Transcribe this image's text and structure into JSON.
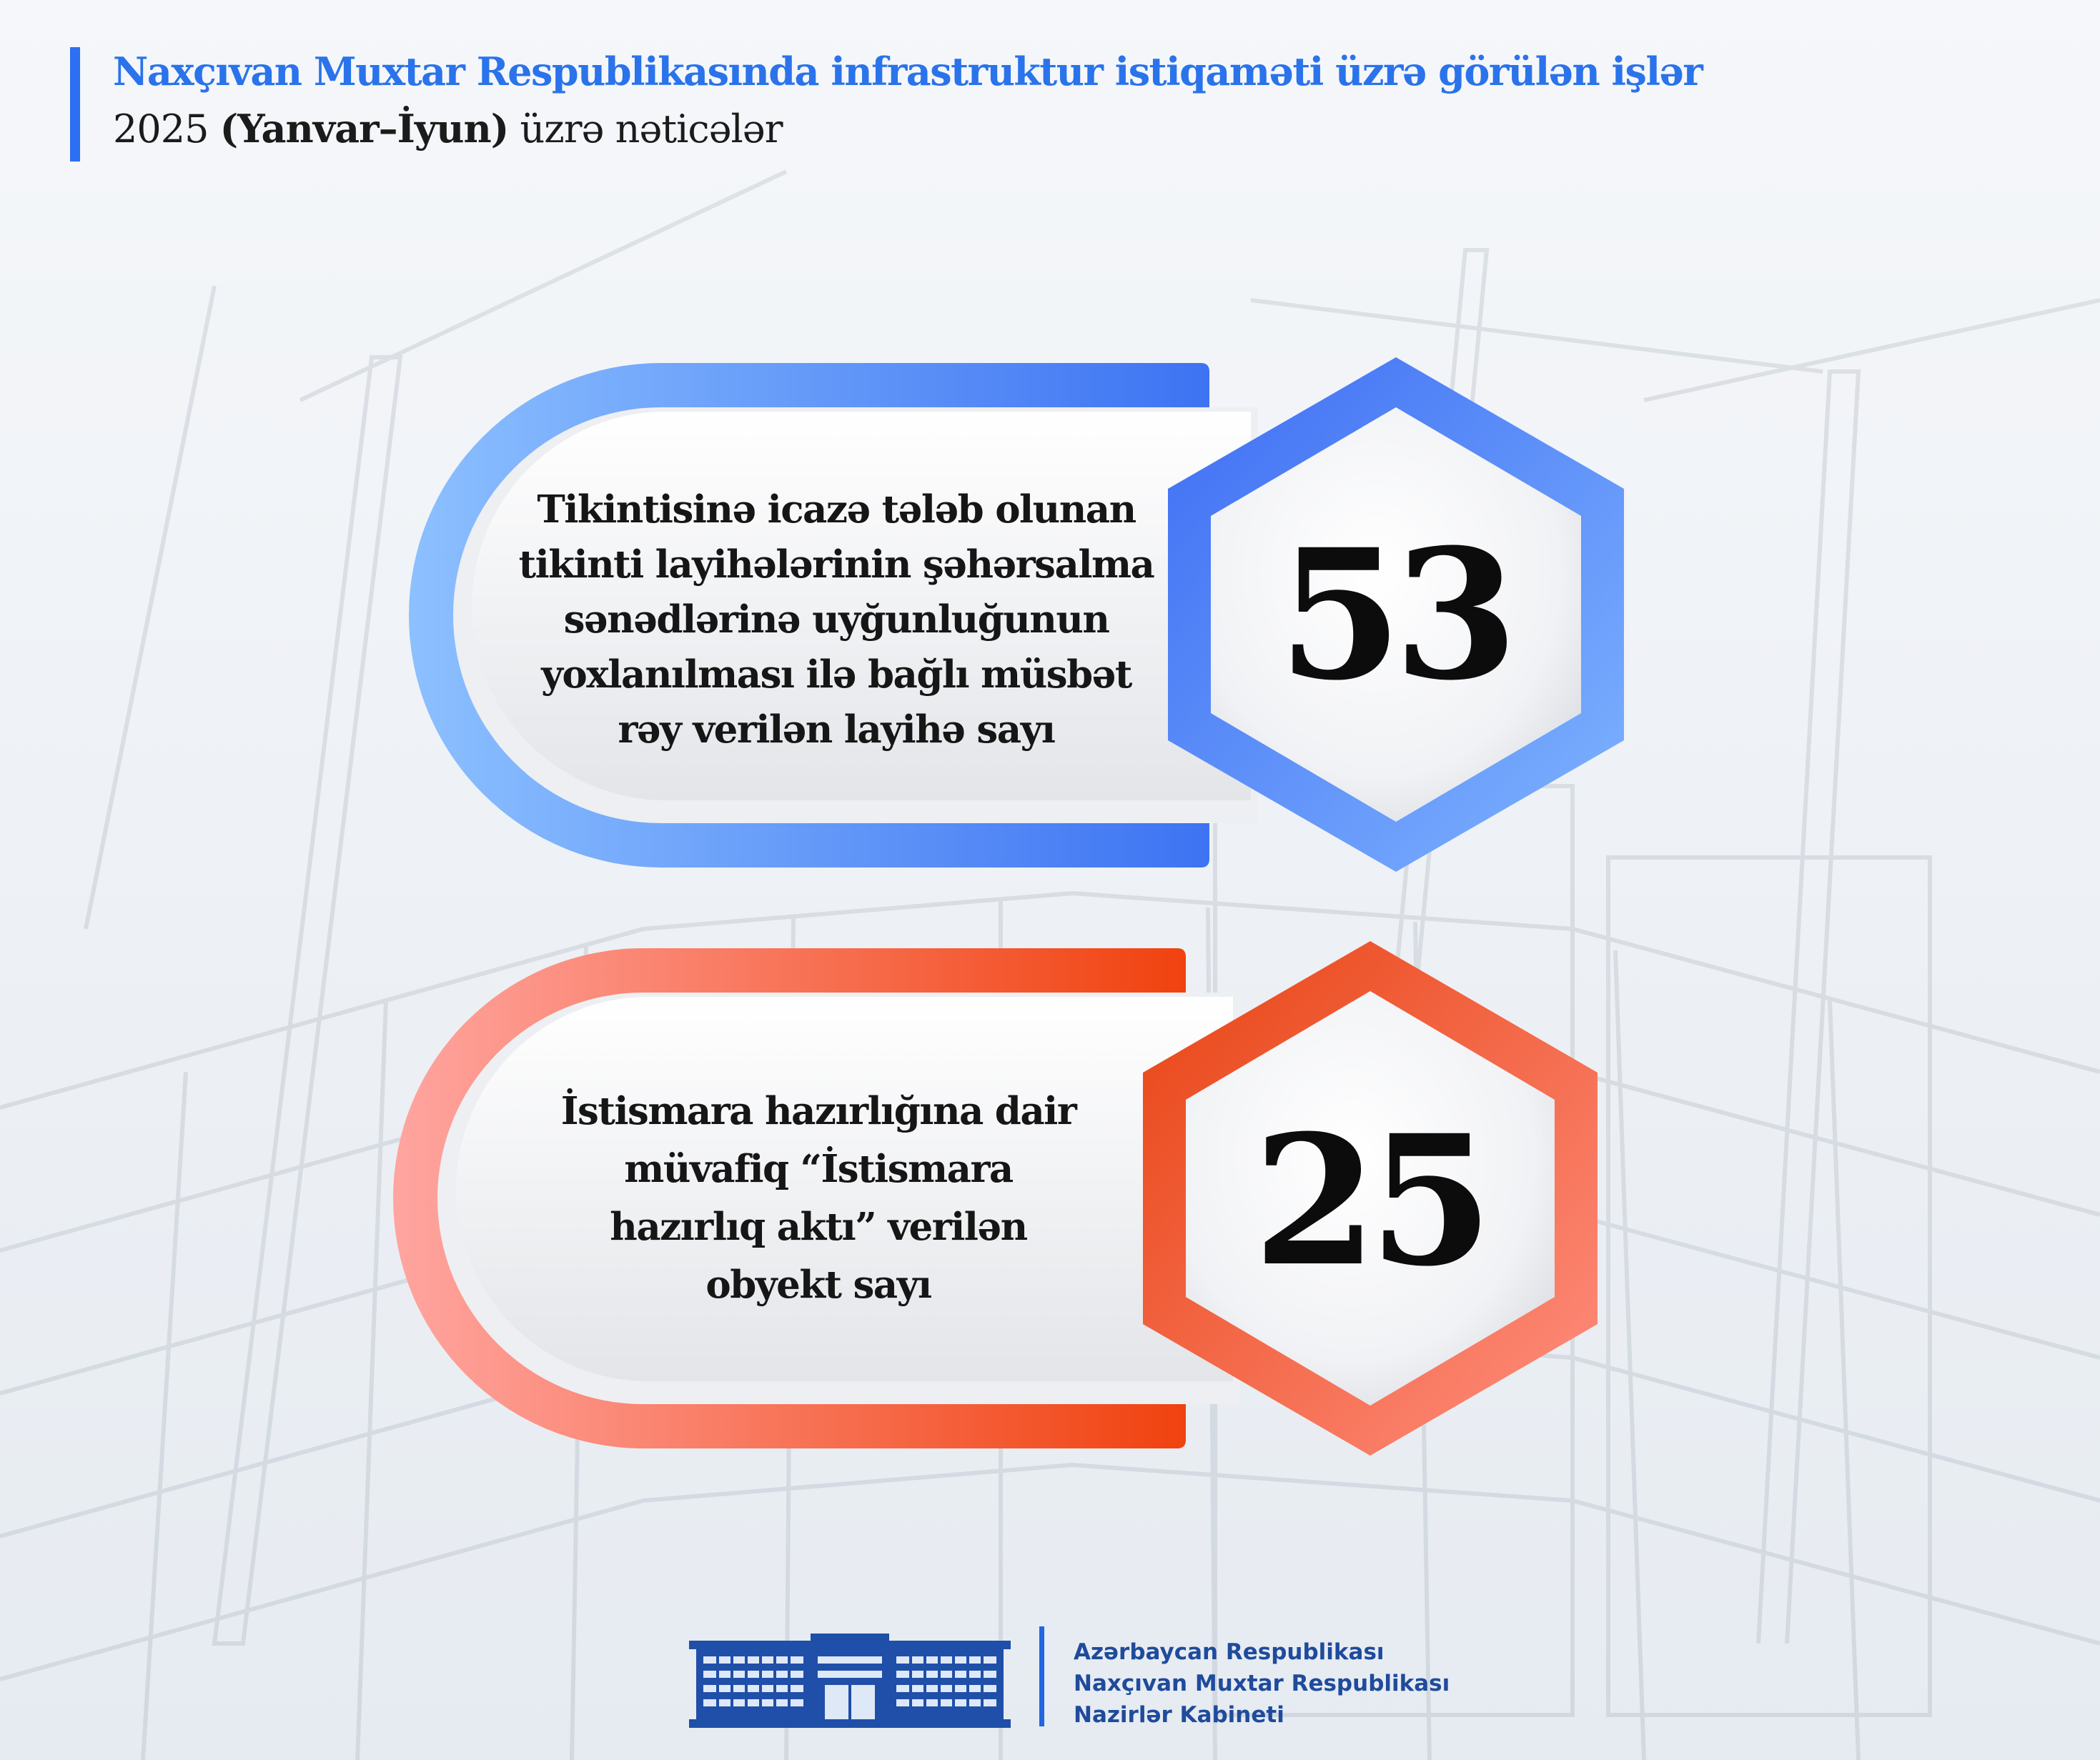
{
  "header": {
    "title": "Naxçıvan Muxtar Respublikasında infrastruktur istiqaməti üzrə görülən işlər",
    "subtitle_year": "2025",
    "subtitle_period": "(Yanvar–İyun)",
    "subtitle_rest": "üzrə nəticələr"
  },
  "cards": [
    {
      "description_lines": [
        "Tikintisinə icazə tələb olunan",
        "tikinti layihələrinin şəhərsalma",
        "sənədlərinə uyğunluğunun",
        "yoxlanılması ilə bağlı müsbət",
        "rəy verilən layihə sayı"
      ],
      "value": "53",
      "accent_color": "#3f7bf5"
    },
    {
      "description_lines": [
        "İstismara hazırlığına dair",
        "müvafiq “İstismara",
        "hazırlıq aktı” verilən",
        "obyekt sayı"
      ],
      "value": "25",
      "accent_color": "#f14a1d"
    }
  ],
  "footer": {
    "logo": "government-building-icon",
    "line1": "Azərbaycan Respublikası",
    "line2": "Naxçıvan Muxtar Respublikası",
    "line3": "Nazirlər Kabineti"
  }
}
